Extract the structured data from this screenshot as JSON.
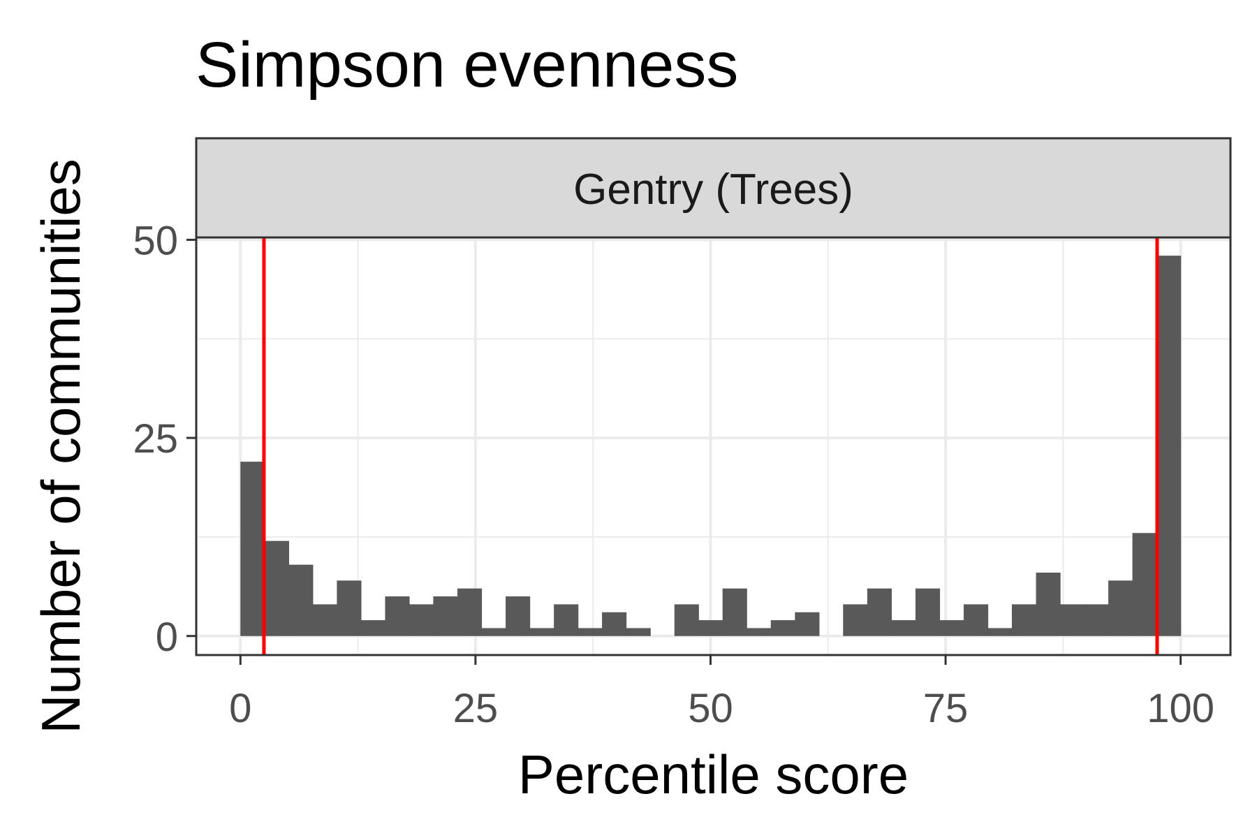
{
  "chart_data": {
    "type": "bar",
    "title": "Simpson evenness",
    "facet_label": "Gentry (Trees)",
    "xlabel": "Percentile score",
    "ylabel": "Number of communities",
    "xlim": [
      -4.7,
      105.3
    ],
    "ylim": [
      -2.4,
      50.3
    ],
    "x_ticks": [
      0,
      25,
      50,
      75,
      100
    ],
    "x_tick_labels": [
      "0",
      "25",
      "50",
      "75",
      "100"
    ],
    "y_ticks": [
      0,
      25,
      50
    ],
    "y_tick_labels": [
      "0",
      "25",
      "50"
    ],
    "grid": true,
    "bin_width": 2.564,
    "bars": [
      {
        "x": 1.28,
        "count": 22
      },
      {
        "x": 3.85,
        "count": 12
      },
      {
        "x": 6.41,
        "count": 9
      },
      {
        "x": 8.97,
        "count": 4
      },
      {
        "x": 11.54,
        "count": 7
      },
      {
        "x": 14.1,
        "count": 2
      },
      {
        "x": 16.67,
        "count": 5
      },
      {
        "x": 19.23,
        "count": 4
      },
      {
        "x": 21.79,
        "count": 5
      },
      {
        "x": 24.36,
        "count": 6
      },
      {
        "x": 26.92,
        "count": 1
      },
      {
        "x": 29.49,
        "count": 5
      },
      {
        "x": 32.05,
        "count": 1
      },
      {
        "x": 34.62,
        "count": 4
      },
      {
        "x": 37.18,
        "count": 1
      },
      {
        "x": 39.74,
        "count": 3
      },
      {
        "x": 42.31,
        "count": 1
      },
      {
        "x": 44.87,
        "count": 0
      },
      {
        "x": 47.44,
        "count": 4
      },
      {
        "x": 50.0,
        "count": 2
      },
      {
        "x": 52.56,
        "count": 6
      },
      {
        "x": 55.13,
        "count": 1
      },
      {
        "x": 57.69,
        "count": 2
      },
      {
        "x": 60.26,
        "count": 3
      },
      {
        "x": 62.82,
        "count": 0
      },
      {
        "x": 65.38,
        "count": 4
      },
      {
        "x": 67.95,
        "count": 6
      },
      {
        "x": 70.51,
        "count": 2
      },
      {
        "x": 73.08,
        "count": 6
      },
      {
        "x": 75.64,
        "count": 2
      },
      {
        "x": 78.21,
        "count": 4
      },
      {
        "x": 80.77,
        "count": 1
      },
      {
        "x": 83.33,
        "count": 4
      },
      {
        "x": 85.9,
        "count": 8
      },
      {
        "x": 88.46,
        "count": 4
      },
      {
        "x": 91.03,
        "count": 4
      },
      {
        "x": 93.59,
        "count": 7
      },
      {
        "x": 96.15,
        "count": 13
      },
      {
        "x": 98.72,
        "count": 48
      }
    ],
    "reference_lines": [
      2.5,
      97.5
    ],
    "bar_color": "#595959",
    "reference_line_color": "#ff0000",
    "strip_fill": "#d9d9d9",
    "panel_border_color": "#333333",
    "grid_color": "#ebebeb"
  }
}
